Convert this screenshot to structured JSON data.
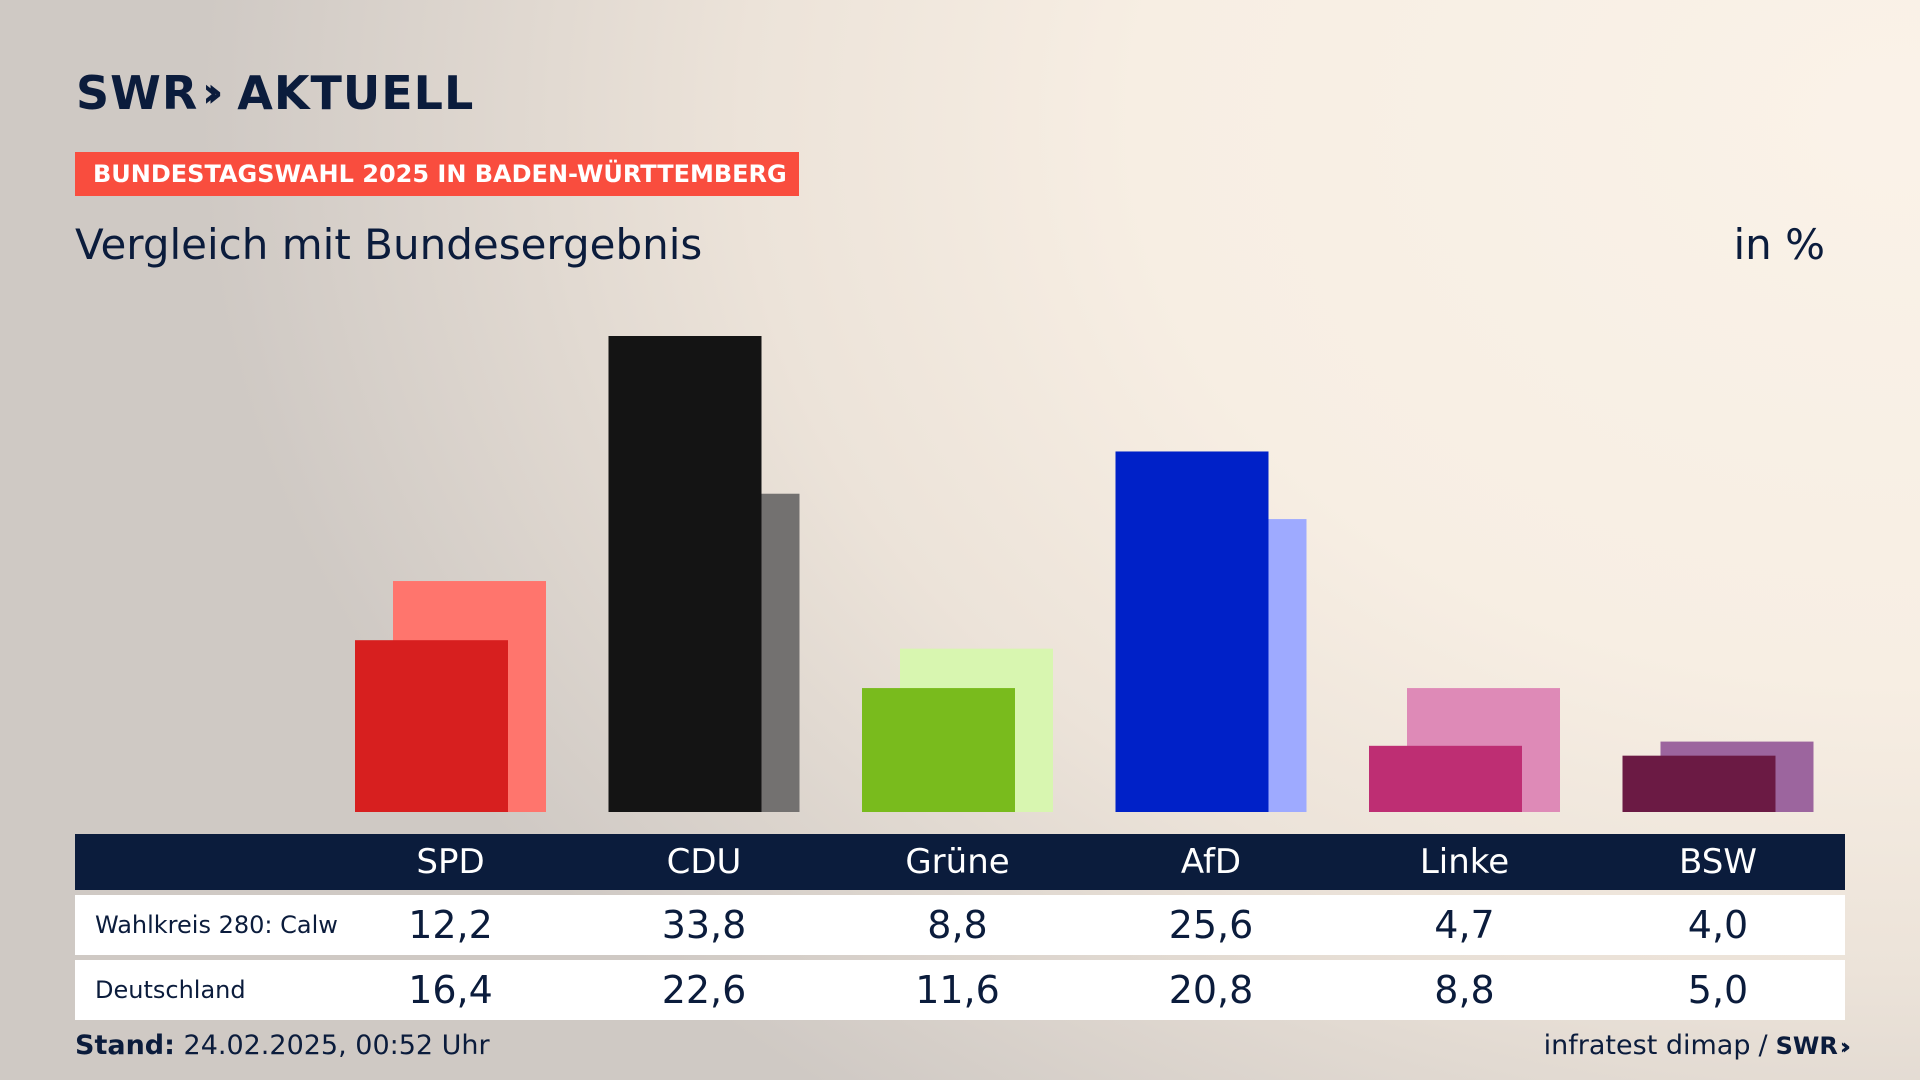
{
  "logo": {
    "brand": "SWR",
    "suffix": "AKTUELL"
  },
  "banner": "BUNDESTAGSWAHL 2025 IN BADEN-WÜRTTEMBERG",
  "title": "Vergleich mit Bundesergebnis",
  "unit": "in %",
  "rows": [
    {
      "label": "Wahlkreis 280: Calw"
    },
    {
      "label": "Deutschland"
    }
  ],
  "footer": {
    "stand_label": "Stand:",
    "stand_value": "24.02.2025, 00:52 Uhr",
    "source": "infratest dimap",
    "separator": "/",
    "source_brand": "SWR"
  },
  "chart_data": {
    "type": "bar",
    "categories": [
      "SPD",
      "CDU",
      "Grüne",
      "AfD",
      "Linke",
      "BSW"
    ],
    "series": [
      {
        "name": "Wahlkreis 280: Calw",
        "values": [
          12.2,
          33.8,
          8.8,
          25.6,
          4.7,
          4.0
        ],
        "colors": [
          "#d71f1f",
          "#141414",
          "#79bb1d",
          "#0021c8",
          "#be2e73",
          "#6b1a44"
        ]
      },
      {
        "name": "Deutschland",
        "values": [
          16.4,
          22.6,
          11.6,
          20.8,
          8.8,
          5.0
        ],
        "colors": [
          "#ff756d",
          "#737170",
          "#d8f6b0",
          "#9eaaff",
          "#de8ab7",
          "#9c659e"
        ]
      }
    ],
    "value_labels": [
      [
        "12,2",
        "33,8",
        "8,8",
        "25,6",
        "4,7",
        "4,0"
      ],
      [
        "16,4",
        "22,6",
        "11,6",
        "20,8",
        "8,8",
        "5,0"
      ]
    ],
    "ylim": [
      0,
      33.8
    ],
    "grid": false,
    "legend": "none"
  }
}
